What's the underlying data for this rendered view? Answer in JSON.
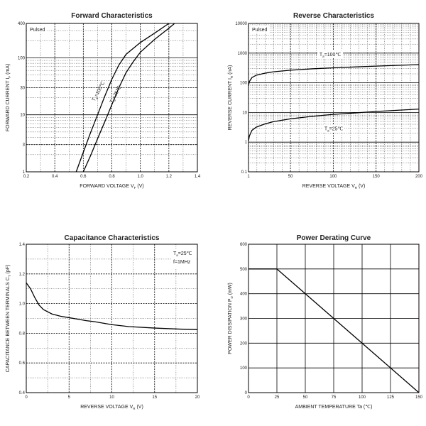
{
  "chart_data": [
    {
      "id": "forward",
      "type": "line",
      "title": "Forward   Characteristics",
      "xlabel": "FORWARD VOLTAGE",
      "xlabel_sym": "V",
      "xlabel_sub": "F",
      "xlabel_unit": "(V)",
      "ylabel": "FORWARD CURRENT",
      "ylabel_sym": "I",
      "ylabel_sub": "F",
      "ylabel_unit": "(mA)",
      "xscale": "linear",
      "yscale": "log",
      "xlim": [
        0.2,
        1.4
      ],
      "ylim": [
        1,
        400
      ],
      "xticks": [
        0.2,
        0.4,
        0.6,
        0.8,
        1.0,
        1.2,
        1.4
      ],
      "xtick_labels": [
        "0.2",
        "0.4",
        "0.6",
        "0.8",
        "1.0",
        "1.2",
        "1.4"
      ],
      "yticks": [
        1,
        3,
        10,
        30,
        100,
        400
      ],
      "ytick_labels": [
        "1",
        "3",
        "10",
        "30",
        "100",
        "400"
      ],
      "note": "Pulsed",
      "series": [
        {
          "name": "T=100℃",
          "label_sym": "T",
          "label_sub": "a",
          "label_val": "=100℃",
          "x": [
            0.55,
            0.6,
            0.65,
            0.7,
            0.75,
            0.8,
            0.85,
            0.9,
            1.0,
            1.1,
            1.2
          ],
          "y": [
            1,
            2.2,
            4.8,
            10,
            21,
            42,
            75,
            115,
            185,
            270,
            400
          ]
        },
        {
          "name": "T=25℃",
          "label_sym": "T",
          "label_sub": "a",
          "label_val": "=25℃",
          "x": [
            0.6,
            0.65,
            0.7,
            0.75,
            0.8,
            0.85,
            0.9,
            0.95,
            1.0,
            1.1,
            1.2,
            1.24
          ],
          "y": [
            1,
            1.9,
            3.8,
            7.5,
            15,
            30,
            55,
            85,
            125,
            210,
            330,
            400
          ]
        }
      ]
    },
    {
      "id": "reverse",
      "type": "line",
      "title": "Reverse    Characteristics",
      "xlabel": "REVERSE VOLTAGE",
      "xlabel_sym": "V",
      "xlabel_sub": "R",
      "xlabel_unit": "(V)",
      "ylabel": "REVERSE CURRENT",
      "ylabel_sym": "I",
      "ylabel_sub": "R",
      "ylabel_unit": "(nA)",
      "xscale": "linear",
      "yscale": "log",
      "xlim": [
        1,
        200
      ],
      "ylim": [
        0.1,
        10000
      ],
      "xticks": [
        1,
        50,
        100,
        150,
        200
      ],
      "xtick_labels": [
        "1",
        "50",
        "100",
        "150",
        "200"
      ],
      "yticks": [
        0.1,
        1,
        10,
        100,
        1000,
        10000
      ],
      "ytick_labels": [
        "0.1",
        "1",
        "10",
        "100",
        "1000",
        "10000"
      ],
      "note": "Pulsed",
      "series": [
        {
          "name": "T=100℃",
          "label_sym": "T",
          "label_sub": "a",
          "label_val": "=100℃",
          "x": [
            1,
            2,
            5,
            10,
            20,
            30,
            50,
            75,
            100,
            150,
            200
          ],
          "y": [
            80,
            110,
            150,
            180,
            210,
            235,
            265,
            295,
            320,
            365,
            410
          ]
        },
        {
          "name": "T=25℃",
          "label_sym": "T",
          "label_sub": "a",
          "label_val": "=25℃",
          "x": [
            1,
            2,
            5,
            10,
            20,
            30,
            50,
            75,
            100,
            150,
            200
          ],
          "y": [
            1.1,
            1.6,
            2.5,
            3.2,
            4.1,
            4.9,
            6.1,
            7.4,
            8.6,
            10.8,
            13
          ]
        }
      ]
    },
    {
      "id": "capacitance",
      "type": "line",
      "title": "Capacitance Characteristics",
      "xlabel": "REVERSE VOLTAGE",
      "xlabel_sym": "V",
      "xlabel_sub": "R",
      "xlabel_unit": "(V)",
      "ylabel": "CAPACITANCE BETWEEN TERMINALS",
      "ylabel_sym": "C",
      "ylabel_sub": "T",
      "ylabel_unit": "(pF)",
      "xscale": "linear",
      "yscale": "linear",
      "xlim": [
        0,
        20
      ],
      "ylim": [
        0.4,
        1.4
      ],
      "xticks": [
        0,
        5,
        10,
        15,
        20
      ],
      "xtick_labels": [
        "0",
        "5",
        "10",
        "15",
        "20"
      ],
      "yticks": [
        0.4,
        0.6,
        0.8,
        1.0,
        1.2,
        1.4
      ],
      "ytick_labels": [
        "0.4",
        "0.6",
        "0.8",
        "1.0",
        "1.2",
        "1.4"
      ],
      "note_temp_sym": "T",
      "note_temp_sub": "a",
      "note_temp_val": "=25℃",
      "note_freq": "f=1MHz",
      "series": [
        {
          "name": "C_T",
          "x": [
            0,
            0.5,
            1,
            1.5,
            2,
            3,
            4,
            5,
            6,
            7,
            8,
            10,
            12,
            15,
            18,
            20
          ],
          "y": [
            1.14,
            1.1,
            1.04,
            0.99,
            0.96,
            0.93,
            0.915,
            0.905,
            0.895,
            0.885,
            0.878,
            0.858,
            0.845,
            0.835,
            0.828,
            0.825
          ]
        }
      ]
    },
    {
      "id": "derating",
      "type": "line",
      "title": "Power Derating Curve",
      "xlabel": "AMBIENT TEMPERATURE",
      "xlabel_sym": "Ta",
      "xlabel_unit": "(℃)",
      "ylabel": "POWER DISSIPATION",
      "ylabel_sym": "P",
      "ylabel_sub": "D",
      "ylabel_unit": "(mW)",
      "xscale": "linear",
      "yscale": "linear",
      "xlim": [
        0,
        150
      ],
      "ylim": [
        0,
        600
      ],
      "xticks": [
        0,
        25,
        50,
        75,
        100,
        125,
        150
      ],
      "xtick_labels": [
        "0",
        "25",
        "50",
        "75",
        "100",
        "125",
        "150"
      ],
      "yticks": [
        0,
        100,
        200,
        300,
        400,
        500,
        600
      ],
      "ytick_labels": [
        "0",
        "100",
        "200",
        "300",
        "400",
        "500",
        "600"
      ],
      "series": [
        {
          "name": "P_D",
          "x": [
            0,
            25,
            150
          ],
          "y": [
            500,
            500,
            0
          ]
        }
      ]
    }
  ]
}
